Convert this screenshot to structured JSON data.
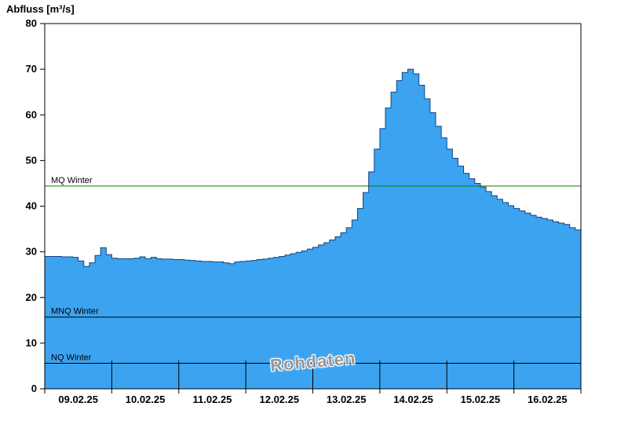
{
  "chart_data": {
    "type": "area",
    "title": "Abfluss [m³/s]",
    "watermark": "Rohdaten",
    "ylabel": "Abfluss [m³/s]",
    "xlabel": "",
    "ylim": [
      0,
      80
    ],
    "y_ticks": [
      0,
      10,
      20,
      30,
      40,
      50,
      60,
      70,
      80
    ],
    "x_labels": [
      "09.02.25",
      "10.02.25",
      "11.02.25",
      "12.02.25",
      "13.02.25",
      "14.02.25",
      "15.02.25",
      "16.02.25"
    ],
    "step_hours": 2,
    "series_name": "Abfluss Rohdaten",
    "values": [
      29,
      29,
      29,
      28.9,
      28.9,
      28.8,
      28,
      26.8,
      27.6,
      29.2,
      30.9,
      29.4,
      28.6,
      28.5,
      28.5,
      28.5,
      28.6,
      28.9,
      28.5,
      28.8,
      28.5,
      28.4,
      28.4,
      28.3,
      28.3,
      28.2,
      28.1,
      28,
      27.9,
      27.9,
      27.8,
      27.8,
      27.6,
      27.4,
      27.8,
      27.9,
      28,
      28.1,
      28.3,
      28.4,
      28.6,
      28.8,
      29,
      29.3,
      29.6,
      29.9,
      30.2,
      30.6,
      31,
      31.5,
      32,
      32.6,
      33.3,
      34.2,
      35.3,
      37,
      39.5,
      43,
      47.5,
      52.5,
      57,
      61.5,
      65,
      67.5,
      69.3,
      70,
      69,
      66.5,
      63.5,
      60.5,
      57.5,
      55,
      52.5,
      50.5,
      48.8,
      47.2,
      46,
      45,
      44.2,
      43.2,
      42.3,
      41.5,
      40.8,
      40.1,
      39.5,
      39,
      38.5,
      38,
      37.6,
      37.3,
      37,
      36.6,
      36.3,
      36,
      35.3,
      34.8,
      34.5
    ],
    "ref_lines": [
      {
        "label": "MQ Winter",
        "value": 44.4,
        "color": "#008000"
      },
      {
        "label": "MNQ Winter",
        "value": 15.7,
        "color": "#000000"
      },
      {
        "label": "NQ Winter",
        "value": 5.6,
        "color": "#000000"
      }
    ],
    "fill_color": "#3BA3F0",
    "line_color": "#16437F",
    "grid": "day-ticks",
    "legend": "off"
  }
}
